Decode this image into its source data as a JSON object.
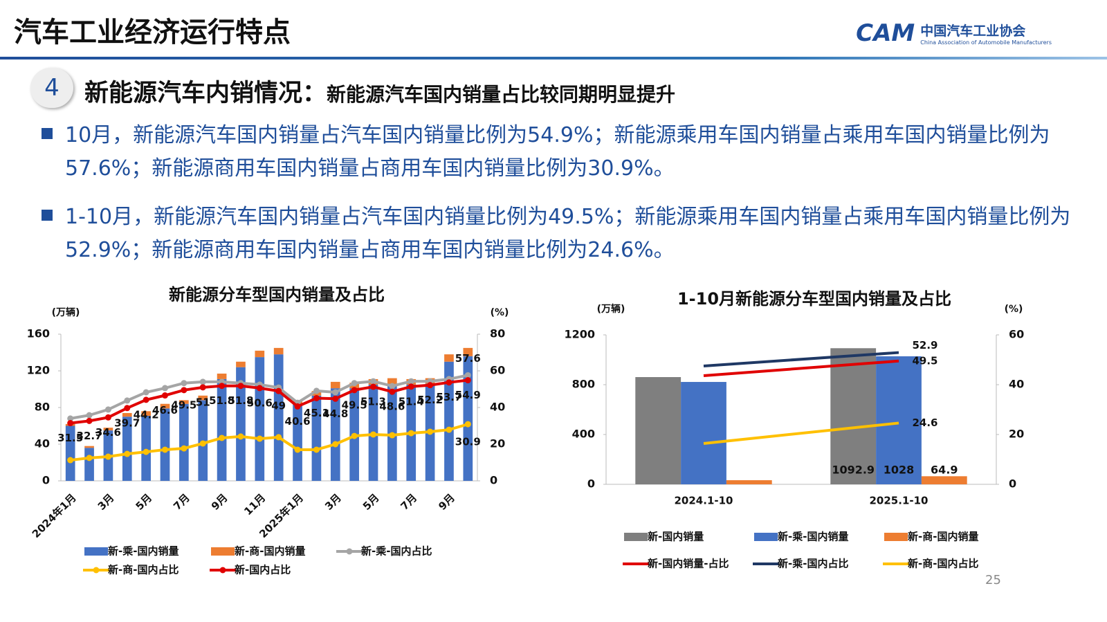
{
  "header": {
    "title": "汽车工业经济运行特点",
    "logo_cn": "中国汽车工业协会",
    "logo_en": "China Association of Automobile Manufacturers",
    "logo_mark": "CAM"
  },
  "section": {
    "number": "4",
    "title": "新能源汽车内销情况：",
    "subtitle": "新能源汽车国内销量占比较同期明显提升"
  },
  "bullets": [
    "10月，新能源汽车国内销量占汽车国内销量比例为54.9%；新能源乘用车国内销量占乘用车国内销量比例为57.6%；新能源商用车国内销量占商用车国内销量比例为30.9%。",
    "1-10月，新能源汽车国内销量占汽车国内销量比例为49.5%；新能源乘用车国内销量占乘用车国内销量比例为52.9%；新能源商用车国内销量占商用车国内销量比例为24.6%。"
  ],
  "page_number": "25",
  "chart_data": [
    {
      "type": "combo",
      "title": "新能源分车型国内销量及占比",
      "y_unit": "(万辆)",
      "y2_unit": "(%)",
      "bar_mode": "stacked",
      "markers": true,
      "categories": [
        "2024年1月",
        null,
        "3月",
        null,
        "5月",
        null,
        "7月",
        null,
        "9月",
        null,
        "11月",
        null,
        "2025年1月",
        null,
        "3月",
        null,
        "5月",
        null,
        "7月",
        null,
        "9月",
        null
      ],
      "ylim": [
        0,
        160
      ],
      "yticks": [
        0,
        40,
        80,
        120,
        160
      ],
      "y2lim": [
        0,
        80
      ],
      "y2ticks": [
        0,
        20,
        40,
        60,
        80
      ],
      "series": [
        {
          "name": "新-乘-国内销量",
          "kind": "bar",
          "color": "#4472c4",
          "values": [
            60,
            36,
            55,
            70,
            71,
            79,
            84,
            88,
            111,
            124,
            135,
            138,
            83,
            93,
            101,
            101,
            105,
            105,
            105,
            106,
            130,
            136
          ]
        },
        {
          "name": "新-商-国内销量",
          "kind": "bar",
          "color": "#ed7d31",
          "values": [
            2,
            2,
            3,
            4,
            5,
            5,
            4,
            5,
            6,
            6,
            7,
            7,
            4,
            5,
            7,
            6,
            6,
            7,
            6,
            6,
            8,
            9
          ]
        },
        {
          "name": "新-乘-国内占比",
          "kind": "line",
          "axis": "y2",
          "color": "#a5a5a5",
          "data_labels": "last",
          "values": [
            34.0,
            35.8,
            38.9,
            43.8,
            48.3,
            50.6,
            53.3,
            54.0,
            54.0,
            53.3,
            52.5,
            50.9,
            42.6,
            49.1,
            48.3,
            53.3,
            54.3,
            51.7,
            54.3,
            54.3,
            55.5,
            57.6
          ]
        },
        {
          "name": "新-商-国内占比",
          "kind": "line",
          "axis": "y2",
          "color": "#ffc000",
          "data_labels": "last",
          "values": [
            11.3,
            12.5,
            13.2,
            14.7,
            15.8,
            17.0,
            17.7,
            20.4,
            23.4,
            24.2,
            23.0,
            23.8,
            17.0,
            17.0,
            20.0,
            24.5,
            25.3,
            24.9,
            26.0,
            26.8,
            27.9,
            30.9
          ]
        },
        {
          "name": "新-国内占比",
          "kind": "line",
          "axis": "y2",
          "color": "#e00000",
          "data_labels": "all",
          "values": [
            31.5,
            32.7,
            34.6,
            39.7,
            44.2,
            46.6,
            49.5,
            51,
            51.8,
            51.8,
            50.6,
            49,
            40.6,
            45.1,
            44.8,
            49.5,
            51.3,
            48.6,
            51.4,
            52.2,
            53.7,
            54.9
          ]
        }
      ]
    },
    {
      "type": "combo",
      "title": "1-10月新能源分车型国内销量及占比",
      "y_unit": "(万辆)",
      "y2_unit": "(%)",
      "bar_mode": "grouped",
      "markers": false,
      "categories": [
        "2024.1-10",
        "2025.1-10"
      ],
      "ylim": [
        0,
        1200
      ],
      "yticks": [
        0,
        400,
        800,
        1200
      ],
      "y2lim": [
        0,
        60
      ],
      "y2ticks": [
        0,
        20,
        40,
        60
      ],
      "series": [
        {
          "name": "新-国内销量",
          "kind": "bar",
          "color": "#7f7f7f",
          "data_labels": "last",
          "values": [
            861,
            1092.9
          ]
        },
        {
          "name": "新-乘-国内销量",
          "kind": "bar",
          "color": "#4472c4",
          "data_labels": "last",
          "values": [
            822,
            1028
          ]
        },
        {
          "name": "新-商-国内销量",
          "kind": "bar",
          "color": "#ed7d31",
          "data_labels": "last",
          "values": [
            33,
            64.9
          ]
        },
        {
          "name": "新-国内销量-占比",
          "kind": "line",
          "axis": "y2",
          "color": "#e00000",
          "data_labels": "last",
          "values": [
            43.6,
            49.5
          ]
        },
        {
          "name": "新-乘-国内占比",
          "kind": "line",
          "axis": "y2",
          "color": "#1f3864",
          "data_labels": "last",
          "values": [
            47.5,
            52.9
          ]
        },
        {
          "name": "新-商-国内占比",
          "kind": "line",
          "axis": "y2",
          "color": "#ffc000",
          "data_labels": "last",
          "values": [
            16.4,
            24.6
          ]
        }
      ]
    }
  ]
}
